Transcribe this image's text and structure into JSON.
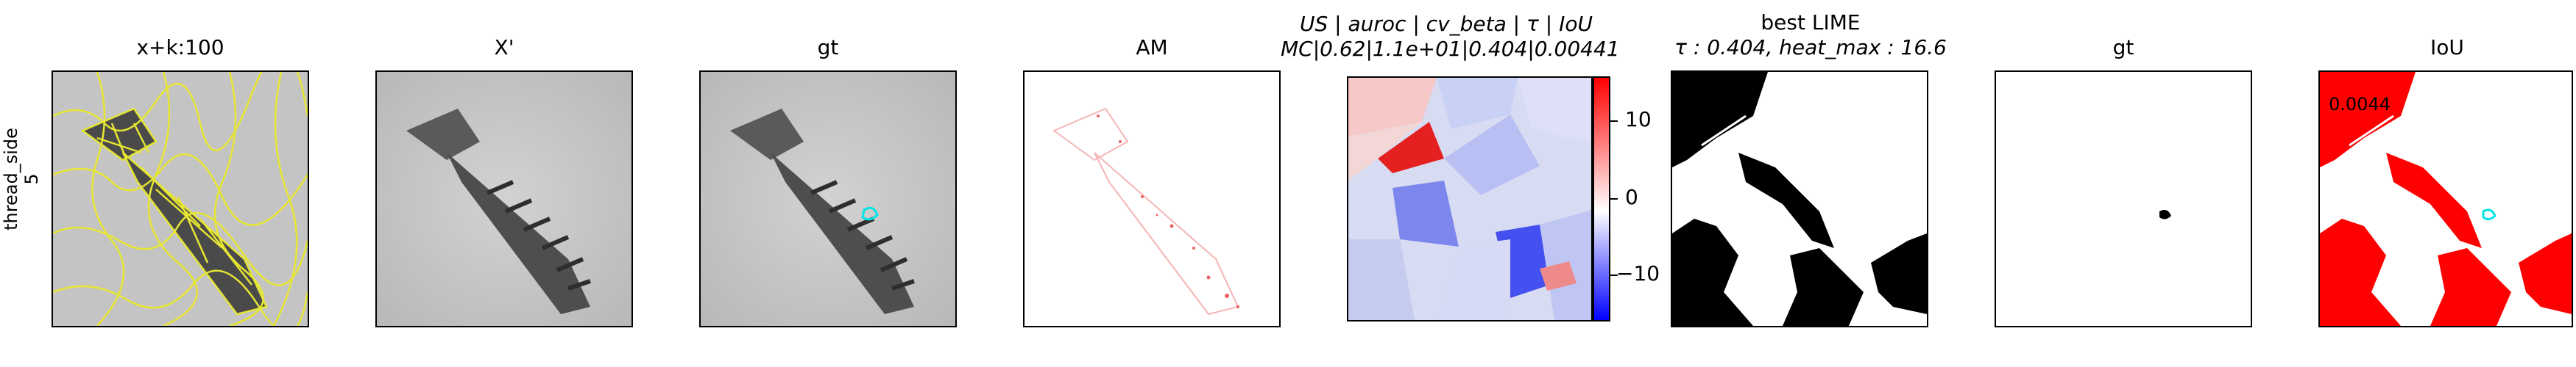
{
  "row_label": {
    "line1": "thread_side",
    "line2": "5"
  },
  "panels": [
    {
      "title": "x+k:100"
    },
    {
      "title": "X'"
    },
    {
      "title": "gt"
    },
    {
      "title": "AM"
    },
    {
      "title_line1": "US | auroc | cv_beta | τ | IoU",
      "title_line2": "MC|0.62|1.1e+01|0.404|0.00441"
    },
    {
      "title_line1": "best LIME",
      "title_line2": "τ : 0.404, heat_max : 16.6"
    },
    {
      "title": "gt"
    },
    {
      "title": "IoU",
      "overlay": "0.0044"
    }
  ],
  "colorbar": {
    "ticks": [
      "10",
      "0",
      "−10"
    ],
    "colors": {
      "high": "#ff0000",
      "mid": "#ffffff",
      "low": "#0000ff"
    }
  },
  "colors": {
    "superpixel_edges": "#e6e633",
    "gt_contour": "#00e5e5",
    "iou_red": "#ff0000",
    "screw_gray": "#555555",
    "bg_gray": "#c8c8c8"
  }
}
